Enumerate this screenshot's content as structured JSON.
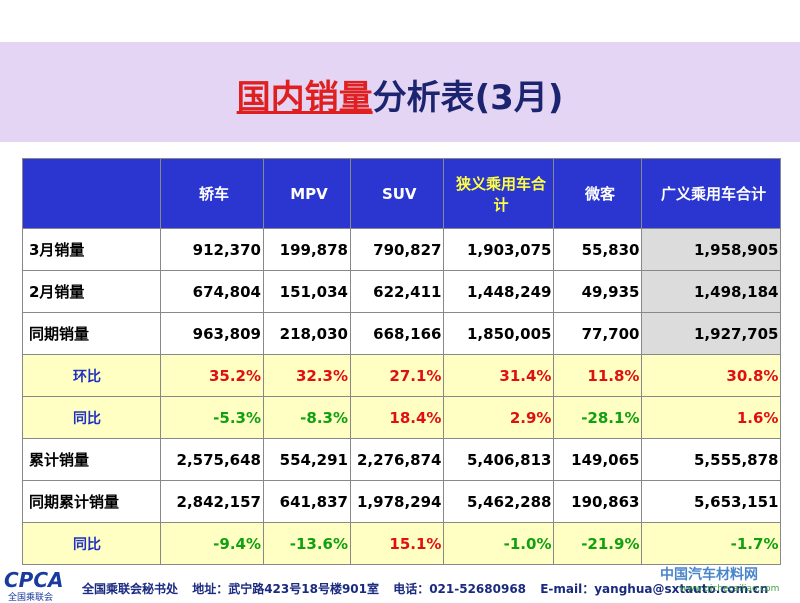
{
  "title": {
    "highlight": "国内销量",
    "rest": "分析表(3月)"
  },
  "table": {
    "header": [
      "",
      "轿车",
      "MPV",
      "SUV",
      "狭义乘用车合计",
      "微客",
      "广义乘用车合计"
    ],
    "header_accent_col": 4,
    "ratio_rows": [
      3,
      4,
      7
    ],
    "shaded_col": 6,
    "shaded_rows": [
      0,
      1,
      2
    ],
    "rows": [
      [
        "3月销量",
        "912,370",
        "199,878",
        "790,827",
        "1,903,075",
        "55,830",
        "1,958,905"
      ],
      [
        "2月销量",
        "674,804",
        "151,034",
        "622,411",
        "1,448,249",
        "49,935",
        "1,498,184"
      ],
      [
        "同期销量",
        "963,809",
        "218,030",
        "668,166",
        "1,850,005",
        "77,700",
        "1,927,705"
      ],
      [
        "环比",
        "35.2%",
        "32.3%",
        "27.1%",
        "31.4%",
        "11.8%",
        "30.8%"
      ],
      [
        "同比",
        "-5.3%",
        "-8.3%",
        "18.4%",
        "2.9%",
        "-28.1%",
        "1.6%"
      ],
      [
        "累计销量",
        "2,575,648",
        "554,291",
        "2,276,874",
        "5,406,813",
        "149,065",
        "5,555,878"
      ],
      [
        "同期累计销量",
        "2,842,157",
        "641,837",
        "1,978,294",
        "5,462,288",
        "190,863",
        "5,653,151"
      ],
      [
        "同比",
        "-9.4%",
        "-13.6%",
        "15.1%",
        "-1.0%",
        "-21.9%",
        "-1.7%"
      ]
    ]
  },
  "footer": {
    "logo": "CPCA",
    "logo_sub": "全国乘联会",
    "org": "全国乘联会秘书处",
    "address": "地址：武宁路423号18号楼901室",
    "phone": "电话：021-52680968",
    "email": "E-mail：yanghua@sxtauto.com.cn"
  },
  "watermark": {
    "name": "中国汽车材料网",
    "url": "www.qichecailiao.com"
  }
}
